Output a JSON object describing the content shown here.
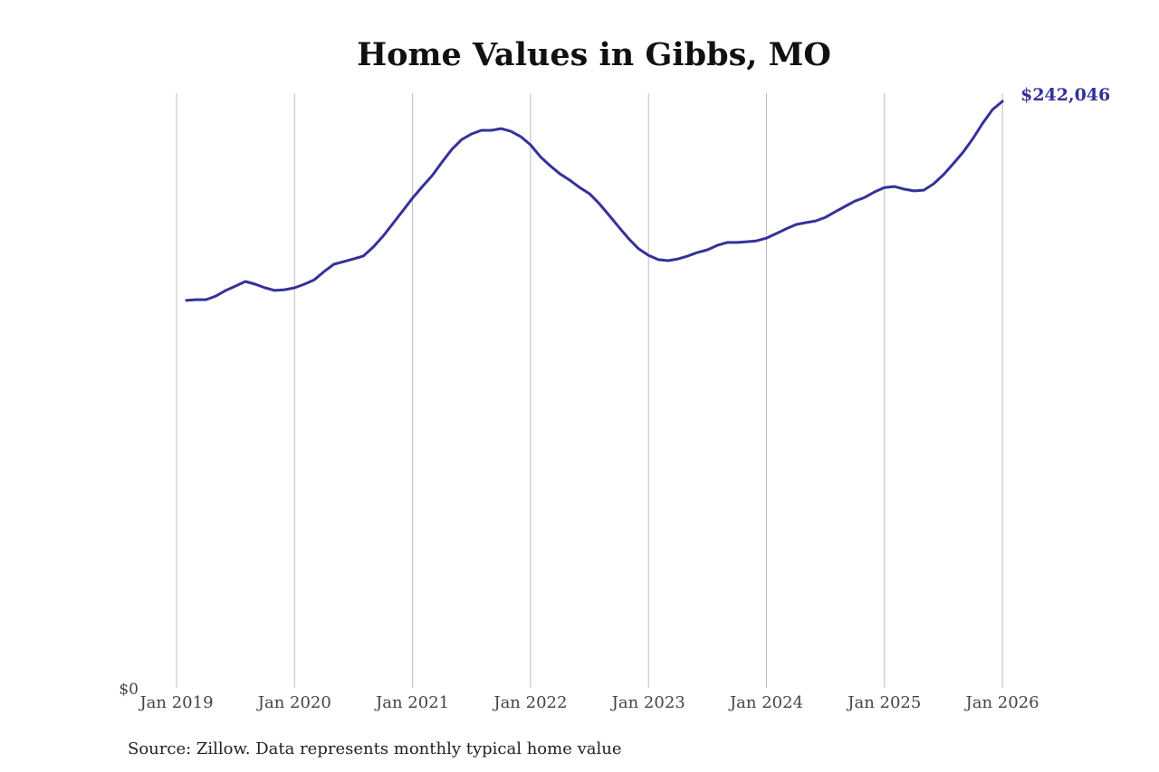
{
  "chart_data": {
    "type": "line",
    "title": "Home Values in Gibbs, MO",
    "source": "Source: Zillow. Data represents monthly typical home value",
    "xlabel": "",
    "ylabel": "",
    "y_zero_label": "$0",
    "ylim": [
      0,
      242046
    ],
    "grid": "vertical",
    "line_color": "#35319a",
    "end_label": "$242,046",
    "x_ticks": [
      "Jan 2019",
      "Jan 2020",
      "Jan 2021",
      "Jan 2022",
      "Jan 2023",
      "Jan 2024",
      "Jan 2025",
      "Jan 2026"
    ],
    "start": "2019-02",
    "series": [
      {
        "name": "Typical home value",
        "values": [
          159900,
          160200,
          160200,
          161700,
          164000,
          165800,
          167700,
          166600,
          165100,
          164000,
          164300,
          165100,
          166600,
          168400,
          171800,
          174800,
          175900,
          177000,
          178200,
          181900,
          186400,
          191600,
          196800,
          202100,
          206900,
          211400,
          217000,
          222200,
          226300,
          228600,
          230100,
          230100,
          230800,
          229700,
          227500,
          224100,
          219200,
          215500,
          212100,
          209500,
          206500,
          203900,
          199800,
          195000,
          190100,
          185300,
          181200,
          178500,
          176700,
          176300,
          177000,
          178200,
          179700,
          180800,
          182600,
          183800,
          183800,
          184100,
          184500,
          185600,
          187500,
          189400,
          191200,
          192000,
          192700,
          194200,
          196500,
          198700,
          200900,
          202400,
          204700,
          206500,
          206900,
          205800,
          205100,
          205400,
          208000,
          211800,
          216300,
          221100,
          226700,
          233100,
          238700,
          242046
        ]
      }
    ]
  }
}
